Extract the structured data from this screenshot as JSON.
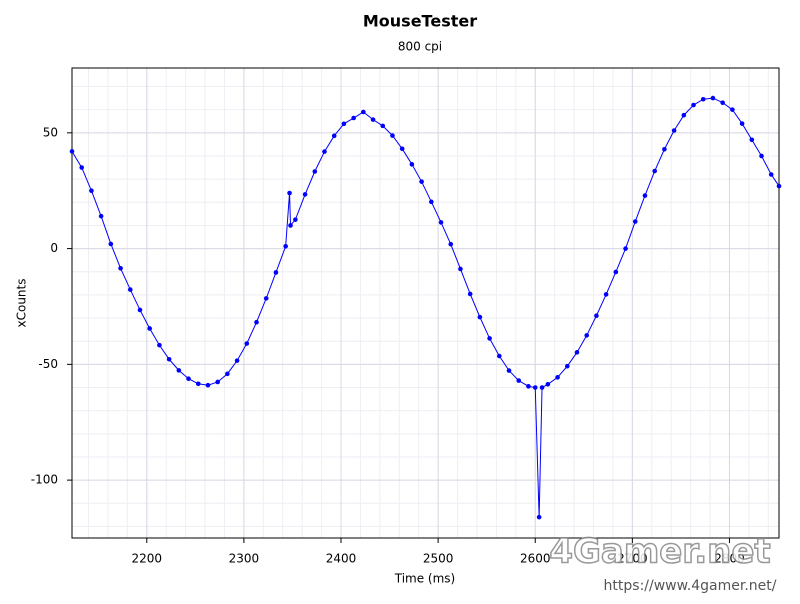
{
  "chart_data": {
    "type": "line",
    "title": "MouseTester",
    "subtitle": "800 cpi",
    "x_label": "Time (ms)",
    "y_label": "xCounts",
    "watermark": "4Gamer.net",
    "watermark_url": "https://www.4gamer.net/",
    "xlim": [
      2123,
      2851
    ],
    "ylim": [
      -125,
      78
    ],
    "xticks": [
      2200,
      2300,
      2400,
      2500,
      2600,
      2700,
      2800
    ],
    "yticks": [
      -100,
      -50,
      0,
      50
    ],
    "grid": true,
    "markers": true,
    "series": [
      {
        "color": "#0000ff",
        "x": [
          2123,
          2133,
          2143,
          2153,
          2163,
          2173,
          2183,
          2193,
          2203,
          2213,
          2223,
          2233,
          2243,
          2253,
          2263,
          2273,
          2283,
          2293,
          2303,
          2313,
          2323,
          2333,
          2343,
          2347,
          2348,
          2353,
          2363,
          2373,
          2383,
          2393,
          2403,
          2413,
          2423,
          2433,
          2443,
          2453,
          2463,
          2473,
          2483,
          2493,
          2503,
          2513,
          2523,
          2533,
          2543,
          2553,
          2563,
          2573,
          2583,
          2593,
          2600,
          2604,
          2607,
          2613,
          2623,
          2633,
          2643,
          2653,
          2663,
          2673,
          2683,
          2693,
          2703,
          2713,
          2723,
          2733,
          2743,
          2753,
          2763,
          2773,
          2783,
          2793,
          2803,
          2813,
          2823,
          2833,
          2843,
          2851
        ],
        "values": [
          42,
          35,
          25,
          14,
          2,
          -8.5,
          -17.7,
          -26.5,
          -34.5,
          -41.7,
          -47.8,
          -52.6,
          -56.2,
          -58.4,
          -59,
          -57.6,
          -54.1,
          -48.4,
          -41,
          -31.8,
          -21.5,
          -10.3,
          1,
          24,
          10,
          12.5,
          23.4,
          33.3,
          41.9,
          48.7,
          53.9,
          56.4,
          59,
          55.7,
          53,
          48.8,
          43.1,
          36.4,
          28.9,
          20.2,
          11.3,
          1.9,
          -8.8,
          -19.6,
          -29.6,
          -38.8,
          -46.4,
          -52.7,
          -57,
          -59.5,
          -60,
          -116,
          -60,
          -58.6,
          -55.6,
          -50.8,
          -44.8,
          -37.5,
          -29,
          -19.8,
          -10.1,
          0,
          11.7,
          22.9,
          33.5,
          42.9,
          51,
          57.6,
          62,
          64.5,
          65,
          63,
          60,
          54,
          47,
          40,
          32,
          27
        ]
      }
    ]
  }
}
